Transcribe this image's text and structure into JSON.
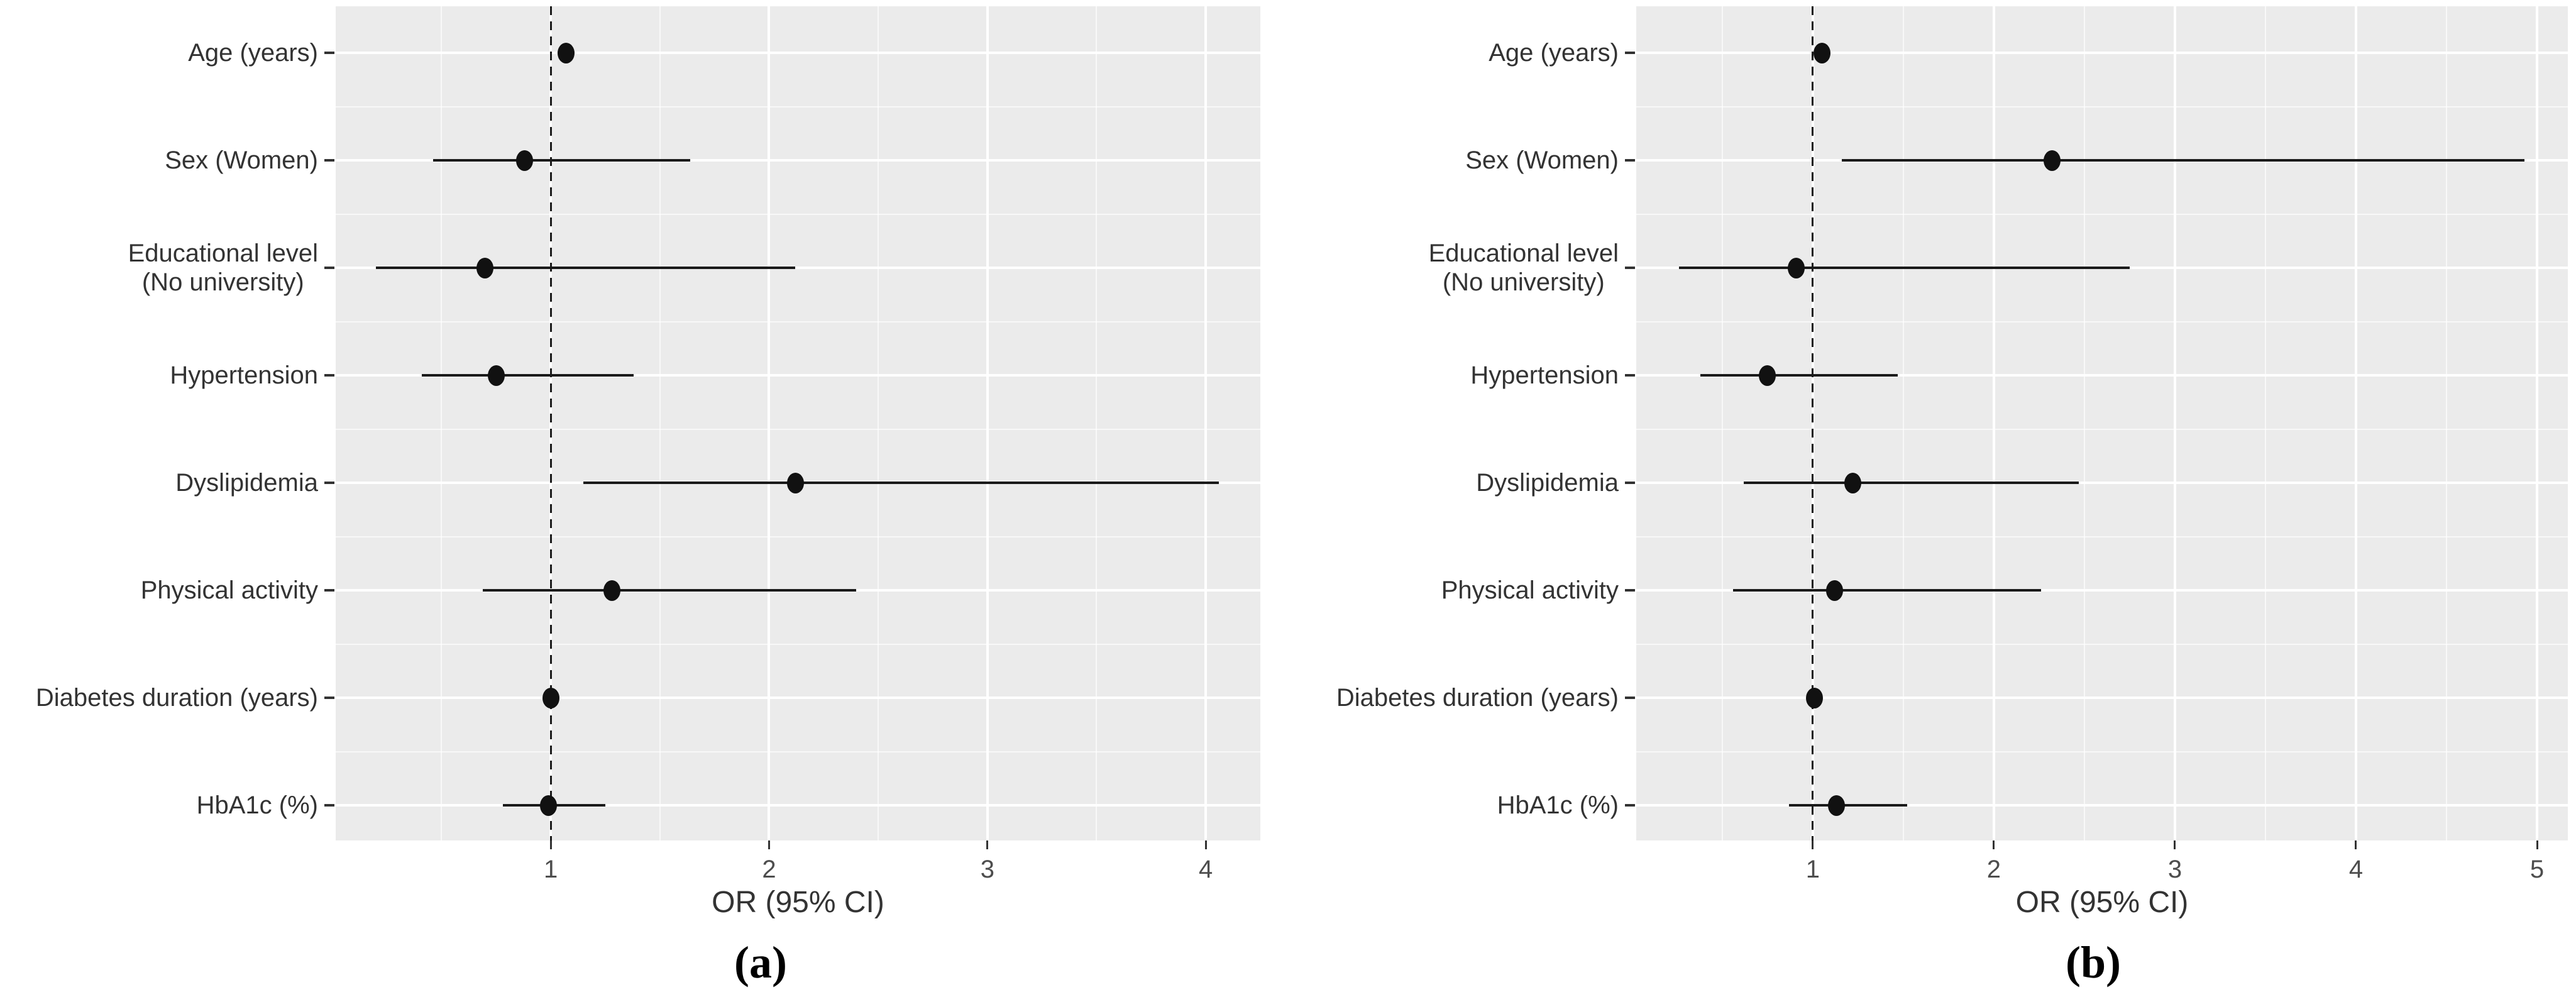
{
  "colors": {
    "panel_background": "#EBEBEB",
    "grid_major": "#FFFFFF",
    "grid_minor": "#F7F7F7",
    "marker": "#111111",
    "reference_line": "#1A1A1A",
    "axis_text": "#333333",
    "tick_text": "#4D4D4D"
  },
  "chart_data": [
    {
      "type": "scatter",
      "subtype": "forest-plot",
      "title": "(a)",
      "xlabel": "OR (95% CI)",
      "ylabel": "",
      "grid": true,
      "legend_position": "none",
      "reference_line_x": 1,
      "xlim": [
        0.015,
        4.25
      ],
      "x_ticks": [
        1,
        2,
        3,
        4
      ],
      "categories": [
        "Age (years)",
        "Sex (Women)",
        "Educational level (No university)",
        "Hypertension",
        "Dyslipidemia",
        "Physical activity",
        "Diabetes duration (years)",
        "HbA1c (%)"
      ],
      "category_label_lines": [
        [
          "Age (years)"
        ],
        [
          "Sex (Women)"
        ],
        [
          "Educational level",
          "(No university)"
        ],
        [
          "Hypertension"
        ],
        [
          "Dyslipidemia"
        ],
        [
          "Physical activity"
        ],
        [
          "Diabetes duration (years)"
        ],
        [
          "HbA1c (%)"
        ]
      ],
      "series": [
        {
          "name": "OR",
          "values": [
            1.07,
            0.88,
            0.7,
            0.75,
            2.12,
            1.28,
            1.0,
            0.99
          ]
        },
        {
          "name": "ci_lower",
          "values": [
            1.03,
            0.46,
            0.2,
            0.41,
            1.15,
            0.69,
            0.97,
            0.78
          ]
        },
        {
          "name": "ci_upper",
          "values": [
            1.11,
            1.64,
            2.12,
            1.38,
            4.06,
            2.4,
            1.03,
            1.25
          ]
        }
      ]
    },
    {
      "type": "scatter",
      "subtype": "forest-plot",
      "title": "(b)",
      "xlabel": "OR (95% CI)",
      "ylabel": "",
      "grid": true,
      "legend_position": "none",
      "reference_line_x": 1,
      "xlim": [
        0.025,
        5.17
      ],
      "x_ticks": [
        1,
        2,
        3,
        4,
        5
      ],
      "categories": [
        "Age (years)",
        "Sex (Women)",
        "Educational level (No university)",
        "Hypertension",
        "Dyslipidemia",
        "Physical activity",
        "Diabetes duration (years)",
        "HbA1c (%)"
      ],
      "category_label_lines": [
        [
          "Age (years)"
        ],
        [
          "Sex (Women)"
        ],
        [
          "Educational level",
          "(No university)"
        ],
        [
          "Hypertension"
        ],
        [
          "Dyslipidemia"
        ],
        [
          "Physical activity"
        ],
        [
          "Diabetes duration (years)"
        ],
        [
          "HbA1c (%)"
        ]
      ],
      "series": [
        {
          "name": "OR",
          "values": [
            1.05,
            2.32,
            0.91,
            0.75,
            1.22,
            1.12,
            1.01,
            1.13
          ]
        },
        {
          "name": "ci_lower",
          "values": [
            1.01,
            1.16,
            0.26,
            0.38,
            0.62,
            0.56,
            0.98,
            0.87
          ]
        },
        {
          "name": "ci_upper",
          "values": [
            1.09,
            4.93,
            2.75,
            1.47,
            2.47,
            2.26,
            1.04,
            1.52
          ]
        }
      ]
    }
  ]
}
